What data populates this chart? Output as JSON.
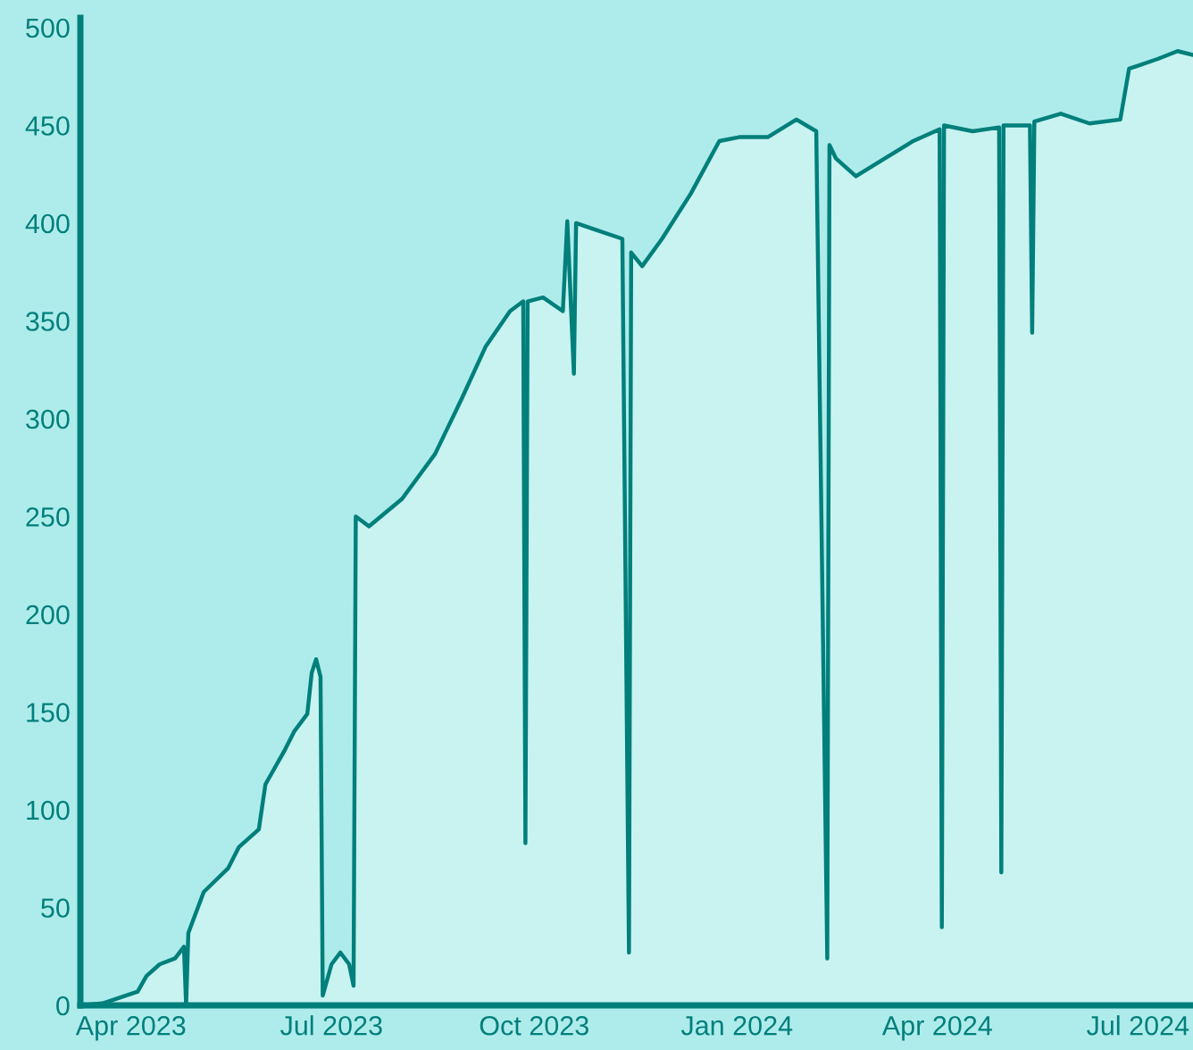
{
  "chart_data": {
    "type": "area",
    "x": [
      "2023-03-09",
      "2023-03-19",
      "2023-04-04",
      "2023-04-08",
      "2023-04-14",
      "2023-04-21",
      "2023-04-25",
      "2023-04-26",
      "2023-04-27",
      "2023-05-04",
      "2023-05-15",
      "2023-05-20",
      "2023-05-29",
      "2023-06-01",
      "2023-06-10",
      "2023-06-14",
      "2023-06-20",
      "2023-06-22",
      "2023-06-24",
      "2023-06-26",
      "2023-06-27",
      "2023-07-01",
      "2023-07-05",
      "2023-07-09",
      "2023-07-11",
      "2023-07-12",
      "2023-07-18",
      "2023-08-02",
      "2023-08-17",
      "2023-08-29",
      "2023-09-09",
      "2023-09-20",
      "2023-09-26",
      "2023-09-27",
      "2023-09-28",
      "2023-10-05",
      "2023-10-14",
      "2023-10-16",
      "2023-10-19",
      "2023-10-20",
      "2023-10-28",
      "2023-11-10",
      "2023-11-13",
      "2023-11-14",
      "2023-11-19",
      "2023-11-28",
      "2023-12-11",
      "2023-12-24",
      "2024-01-02",
      "2024-01-15",
      "2024-01-28",
      "2024-02-06",
      "2024-02-11",
      "2024-02-12",
      "2024-02-15",
      "2024-02-24",
      "2024-03-08",
      "2024-03-21",
      "2024-04-02",
      "2024-04-03",
      "2024-04-04",
      "2024-04-17",
      "2024-04-29",
      "2024-04-30",
      "2024-05-01",
      "2024-05-13",
      "2024-05-14",
      "2024-05-15",
      "2024-05-27",
      "2024-06-09",
      "2024-06-23",
      "2024-06-27",
      "2024-07-10",
      "2024-07-19",
      "2024-07-26"
    ],
    "values": [
      0,
      1,
      7,
      15,
      21,
      24,
      30,
      0,
      37,
      58,
      70,
      81,
      90,
      113,
      131,
      140,
      149,
      170,
      177,
      168,
      5,
      21,
      27,
      21,
      10,
      250,
      245,
      259,
      282,
      310,
      337,
      355,
      360,
      83,
      360,
      362,
      355,
      401,
      323,
      400,
      397,
      392,
      27,
      385,
      378,
      392,
      415,
      442,
      444,
      444,
      453,
      447,
      24,
      440,
      433,
      424,
      433,
      442,
      448,
      40,
      450,
      447,
      449,
      68,
      450,
      450,
      344,
      452,
      456,
      451,
      453,
      479,
      484,
      488,
      486
    ],
    "color": "#007f7b",
    "xlim": [
      "2023-03-09",
      "2024-07-26"
    ],
    "ylim": [
      0,
      505
    ],
    "xticks": [
      {
        "value": "2023-04-01",
        "label": "Apr 2023"
      },
      {
        "value": "2023-07-01",
        "label": "Jul 2023"
      },
      {
        "value": "2023-10-01",
        "label": "Oct 2023"
      },
      {
        "value": "2024-01-01",
        "label": "Jan 2024"
      },
      {
        "value": "2024-04-01",
        "label": "Apr 2024"
      },
      {
        "value": "2024-07-01",
        "label": "Jul 2024"
      }
    ],
    "yticks": [
      0,
      50,
      100,
      150,
      200,
      250,
      300,
      350,
      400,
      450,
      500
    ],
    "grid": false,
    "legend": false
  }
}
